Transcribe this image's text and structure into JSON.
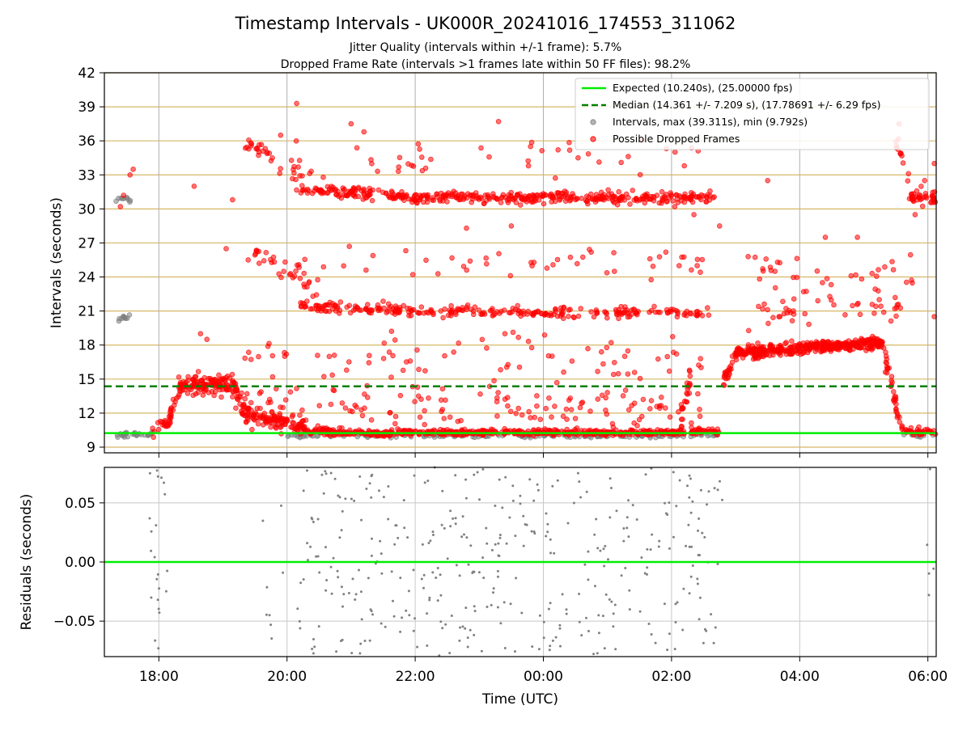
{
  "chart_data": [
    {
      "type": "scatter",
      "title": "Timestamp Intervals - UK000R_20241016_174553_311062",
      "subtitle_lines": [
        "Jitter Quality (intervals within +/-1 frame): 5.7%",
        "Dropped Frame Rate (intervals >1 frames late within 50 FF files): 98.2%"
      ],
      "xlabel": "",
      "ylabel": "Intervals (seconds)",
      "xlim_hours": [
        17.15,
        30.13
      ],
      "ylim": [
        8.5,
        42
      ],
      "yticks": [
        9,
        12,
        15,
        18,
        21,
        24,
        27,
        30,
        33,
        36,
        39,
        42
      ],
      "xticks": [
        {
          "hour": 18,
          "label": "18:00"
        },
        {
          "hour": 20,
          "label": "20:00"
        },
        {
          "hour": 22,
          "label": "22:00"
        },
        {
          "hour": 24,
          "label": "00:00"
        },
        {
          "hour": 26,
          "label": "02:00"
        },
        {
          "hour": 28,
          "label": "04:00"
        },
        {
          "hour": 30,
          "label": "06:00"
        }
      ],
      "expected_interval": 10.24,
      "median_interval": 14.361,
      "legend_position": "top-right",
      "legend": [
        {
          "label": "Expected (10.240s), (25.00000 fps)",
          "style": "solid-line",
          "color": "#00ee00"
        },
        {
          "label": "Median (14.361 +/- 7.209 s), (17.78691 +/- 6.29 fps)",
          "style": "dashed-line",
          "color": "#008000"
        },
        {
          "label": "Intervals, max (39.311s), min (9.792s)",
          "style": "marker",
          "color": "#808080"
        },
        {
          "label": "Possible Dropped Frames",
          "style": "marker",
          "color": "#ff0000"
        }
      ],
      "colors": {
        "dropped": "#ff0000",
        "normal": "#808080",
        "expected": "#00ee00",
        "median": "#008000",
        "gridline": "#d6b766"
      },
      "grid": "vertical at x ticks; horizontal at 3s multiples",
      "series_segments": [
        {
          "name": "normal",
          "x": [
            17.3,
            17.6
          ],
          "y": [
            30.7,
            30.9
          ],
          "count": 10,
          "spread": 0.3
        },
        {
          "name": "normal",
          "x": [
            17.3,
            17.6
          ],
          "y": [
            20.3,
            20.5
          ],
          "count": 10,
          "spread": 0.3
        },
        {
          "name": "normal",
          "x": [
            17.3,
            17.9
          ],
          "y": [
            10.0,
            10.2
          ],
          "count": 30,
          "spread": 0.2
        },
        {
          "name": "dropped",
          "x": [
            17.9,
            18.2
          ],
          "y": [
            10.5,
            11.5
          ],
          "count": 20,
          "spread": 0.6
        },
        {
          "name": "dropped",
          "x": [
            18.15,
            18.35
          ],
          "y": [
            11.5,
            14.5
          ],
          "count": 20,
          "spread": 0.7
        },
        {
          "name": "dropped",
          "x": [
            18.3,
            19.2
          ],
          "y": [
            14.4,
            14.6
          ],
          "count": 130,
          "spread": 0.9
        },
        {
          "name": "dropped",
          "x": [
            19.2,
            19.4
          ],
          "y": [
            14.0,
            12.0
          ],
          "count": 20,
          "spread": 0.7
        },
        {
          "name": "dropped",
          "x": [
            19.3,
            20.3
          ],
          "y": [
            11.8,
            10.8
          ],
          "count": 120,
          "spread": 0.7
        },
        {
          "name": "dropped",
          "x": [
            20.3,
            21.6
          ],
          "y": [
            10.4,
            10.2
          ],
          "count": 120,
          "spread": 0.3
        },
        {
          "name": "dropped",
          "x": [
            21.6,
            26.2
          ],
          "y": [
            10.3,
            10.3
          ],
          "count": 380,
          "spread": 0.25
        },
        {
          "name": "normal",
          "x": [
            20.0,
            26.2
          ],
          "y": [
            10.0,
            10.0
          ],
          "count": 150,
          "spread": 0.15
        },
        {
          "name": "dropped",
          "x": [
            26.15,
            26.3
          ],
          "y": [
            11.0,
            15.5
          ],
          "count": 20,
          "spread": 1.5
        },
        {
          "name": "dropped",
          "x": [
            26.3,
            26.75
          ],
          "y": [
            10.4,
            10.4
          ],
          "count": 35,
          "spread": 0.3
        },
        {
          "name": "normal",
          "x": [
            26.3,
            26.75
          ],
          "y": [
            10.1,
            10.1
          ],
          "count": 15,
          "spread": 0.2
        },
        {
          "name": "dropped",
          "x": [
            26.8,
            27.0
          ],
          "y": [
            15.0,
            17.0
          ],
          "count": 25,
          "spread": 0.8
        },
        {
          "name": "dropped",
          "x": [
            27.0,
            28.2
          ],
          "y": [
            17.3,
            17.8
          ],
          "count": 220,
          "spread": 0.5
        },
        {
          "name": "dropped",
          "x": [
            28.2,
            29.3
          ],
          "y": [
            17.8,
            18.2
          ],
          "count": 200,
          "spread": 0.5
        },
        {
          "name": "dropped",
          "x": [
            29.3,
            29.5
          ],
          "y": [
            17.5,
            13.0
          ],
          "count": 25,
          "spread": 0.8
        },
        {
          "name": "dropped",
          "x": [
            29.5,
            29.6
          ],
          "y": [
            12.5,
            10.8
          ],
          "count": 12,
          "spread": 0.5
        },
        {
          "name": "dropped",
          "x": [
            29.6,
            30.12
          ],
          "y": [
            10.4,
            10.3
          ],
          "count": 35,
          "spread": 0.3
        },
        {
          "name": "normal",
          "x": [
            29.6,
            30.12
          ],
          "y": [
            10.0,
            10.0
          ],
          "count": 10,
          "spread": 0.15
        },
        {
          "name": "dropped",
          "x": [
            19.3,
            20.1
          ],
          "y": [
            36.0,
            33.0
          ],
          "count": 25,
          "spread": 1.0
        },
        {
          "name": "dropped",
          "x": [
            19.5,
            20.5
          ],
          "y": [
            26.0,
            23.0
          ],
          "count": 30,
          "spread": 0.8
        },
        {
          "name": "dropped",
          "x": [
            20.1,
            20.4
          ],
          "y": [
            33.0,
            33.5
          ],
          "count": 10,
          "spread": 1.5
        },
        {
          "name": "dropped",
          "x": [
            20.2,
            22.0
          ],
          "y": [
            31.8,
            31.0
          ],
          "count": 120,
          "spread": 0.5
        },
        {
          "name": "dropped",
          "x": [
            22.0,
            26.7
          ],
          "y": [
            31.0,
            31.0
          ],
          "count": 320,
          "spread": 0.5
        },
        {
          "name": "dropped",
          "x": [
            20.2,
            22.0
          ],
          "y": [
            21.5,
            21.0
          ],
          "count": 100,
          "spread": 0.5
        },
        {
          "name": "dropped",
          "x": [
            22.0,
            26.7
          ],
          "y": [
            21.0,
            20.8
          ],
          "count": 180,
          "spread": 0.5
        },
        {
          "name": "dropped",
          "x": [
            29.7,
            30.12
          ],
          "y": [
            31.0,
            31.0
          ],
          "count": 40,
          "spread": 0.8
        },
        {
          "name": "dropped",
          "x": [
            29.5,
            29.7
          ],
          "y": [
            36.0,
            33.0
          ],
          "count": 12,
          "spread": 1.0
        },
        {
          "name": "dropped",
          "x": [
            27.2,
            29.6
          ],
          "y": [
            20.5,
            21.5
          ],
          "count": 40,
          "spread": 1.2
        },
        {
          "name": "dropped",
          "x": [
            19.2,
            26.5
          ],
          "y": [
            12.5,
            12.5
          ],
          "count": 150,
          "spread": 2.2
        },
        {
          "name": "dropped",
          "x": [
            19.2,
            26.5
          ],
          "y": [
            17.0,
            17.0
          ],
          "count": 70,
          "spread": 2.0
        },
        {
          "name": "dropped",
          "x": [
            19.2,
            26.5
          ],
          "y": [
            25.5,
            25.5
          ],
          "count": 50,
          "spread": 1.5
        },
        {
          "name": "dropped",
          "x": [
            19.3,
            26.5
          ],
          "y": [
            34.5,
            34.5
          ],
          "count": 40,
          "spread": 1.5
        },
        {
          "name": "dropped",
          "x": [
            27.1,
            29.8
          ],
          "y": [
            24.0,
            24.0
          ],
          "count": 40,
          "spread": 2.5
        }
      ],
      "outliers": [
        {
          "x": 17.55,
          "y": 33.0
        },
        {
          "x": 17.6,
          "y": 33.5
        },
        {
          "x": 17.45,
          "y": 31.2
        },
        {
          "x": 17.4,
          "y": 30.2
        },
        {
          "x": 18.55,
          "y": 32.0
        },
        {
          "x": 18.75,
          "y": 18.5
        },
        {
          "x": 18.65,
          "y": 19.0
        },
        {
          "x": 19.15,
          "y": 30.8
        },
        {
          "x": 19.9,
          "y": 36.5
        },
        {
          "x": 19.05,
          "y": 26.5
        },
        {
          "x": 20.15,
          "y": 39.3
        },
        {
          "x": 21.2,
          "y": 36.8
        },
        {
          "x": 21.0,
          "y": 37.5
        },
        {
          "x": 23.3,
          "y": 37.7
        },
        {
          "x": 23.8,
          "y": 35.5
        },
        {
          "x": 26.2,
          "y": 33.8
        },
        {
          "x": 26.35,
          "y": 29.5
        },
        {
          "x": 26.4,
          "y": 25.0
        },
        {
          "x": 26.05,
          "y": 30.2
        },
        {
          "x": 27.5,
          "y": 32.5
        },
        {
          "x": 28.4,
          "y": 27.5
        },
        {
          "x": 28.9,
          "y": 27.5
        },
        {
          "x": 29.8,
          "y": 29.5
        },
        {
          "x": 30.1,
          "y": 34.0
        },
        {
          "x": 30.1,
          "y": 20.5
        },
        {
          "x": 29.95,
          "y": 32.5
        },
        {
          "x": 29.55,
          "y": 37.5
        },
        {
          "x": 26.75,
          "y": 28.5
        },
        {
          "x": 22.4,
          "y": 21.0
        },
        {
          "x": 23.4,
          "y": 19.0
        },
        {
          "x": 23.5,
          "y": 28.5
        },
        {
          "x": 22.8,
          "y": 28.3
        }
      ]
    },
    {
      "type": "scatter",
      "xlabel": "Time (UTC)",
      "ylabel": "Residuals (seconds)",
      "ylim": [
        -0.08,
        0.08
      ],
      "yticks": [
        {
          "value": 0.05,
          "label": "0.05"
        },
        {
          "value": 0.0,
          "label": "0.00"
        },
        {
          "value": -0.05,
          "label": "−0.05"
        }
      ],
      "zero_line_color": "#00ee00",
      "point_color": "#808080",
      "groups": [
        {
          "x": [
            17.85,
            18.15
          ],
          "count": 22
        },
        {
          "x": [
            19.55,
            20.0
          ],
          "count": 8
        },
        {
          "x": [
            20.1,
            26.15
          ],
          "count": 330
        },
        {
          "x": [
            26.15,
            26.55
          ],
          "count": 30
        },
        {
          "x": [
            26.55,
            26.8
          ],
          "count": 10
        },
        {
          "x": [
            29.95,
            30.12
          ],
          "count": 5
        }
      ]
    }
  ]
}
